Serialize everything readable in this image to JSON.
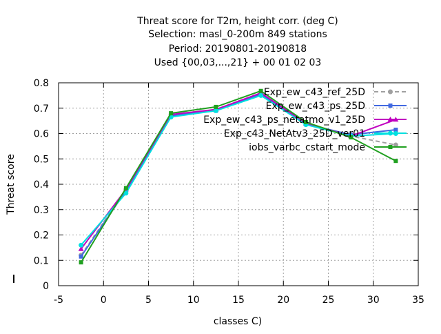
{
  "chart_data": {
    "type": "line",
    "title_lines": [
      "Threat score  for T2m, height corr. (deg C)",
      "Selection: masl_0-200m    849 stations",
      "Period: 20190801-20190818",
      "Used {00,03,...,21} + 00 01 02 03"
    ],
    "xlabel": "classes C)",
    "ylabel": "Threat score",
    "xlim": [
      -5,
      35
    ],
    "ylim": [
      0,
      0.8
    ],
    "xticks": [
      -5,
      0,
      5,
      10,
      15,
      20,
      25,
      30,
      35
    ],
    "yticks": [
      0,
      0.1,
      0.2,
      0.3,
      0.4,
      0.5,
      0.6,
      0.7,
      0.8
    ],
    "xtick_labels": [
      "-5",
      "0",
      "5",
      "10",
      "15",
      "20",
      "25",
      "30",
      "35"
    ],
    "ytick_labels": [
      "0",
      "0.1",
      "0.2",
      "0.3",
      "0.4",
      "0.5",
      "0.6",
      "0.7",
      "0.8"
    ],
    "grid": true,
    "legend_position": "top-right",
    "x": [
      -2.5,
      2.5,
      7.5,
      12.5,
      17.5,
      22.5,
      27.5,
      32.5
    ],
    "series": [
      {
        "name": "Exp_ew_c43_ref_25D",
        "color": "#a0a0a0",
        "dash": "dashed",
        "marker": "circle",
        "values": [
          0.12,
          0.38,
          0.675,
          0.695,
          0.758,
          0.64,
          0.59,
          0.555
        ]
      },
      {
        "name": "Exp_ew_c43_ps_25D",
        "color": "#4169e1",
        "dash": "solid",
        "marker": "square",
        "values": [
          0.115,
          0.375,
          0.67,
          0.69,
          0.755,
          0.638,
          0.595,
          0.615
        ]
      },
      {
        "name": "Exp_ew_c43_ps_netatmo_v1_25D",
        "color": "#c000c0",
        "dash": "solid",
        "marker": "triangle",
        "values": [
          0.145,
          0.38,
          0.675,
          0.695,
          0.76,
          0.64,
          0.59,
          0.655
        ]
      },
      {
        "name": "Exp_c43_NetAtv3_25D_ver01",
        "color": "#00e0e0",
        "dash": "solid",
        "marker": "circle",
        "values": [
          0.16,
          0.365,
          0.665,
          0.69,
          0.75,
          0.635,
          0.59,
          0.6
        ]
      },
      {
        "name": "iobs_varbc_cstart_mode",
        "color": "#20a020",
        "dash": "solid",
        "marker": "square",
        "values": [
          0.092,
          0.385,
          0.68,
          0.705,
          0.768,
          0.645,
          0.585,
          0.492
        ]
      }
    ]
  }
}
